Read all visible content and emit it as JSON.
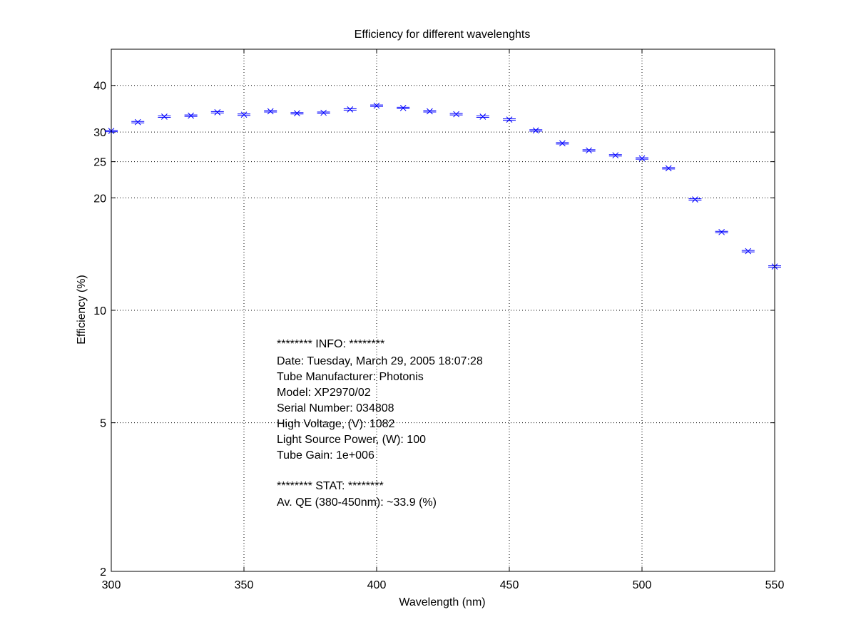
{
  "chart_data": {
    "type": "scatter",
    "title": "Efficiency for different wavelenghts",
    "xlabel": "Wavelength (nm)",
    "ylabel": "Efficiency (%)",
    "xlim": [
      300,
      550
    ],
    "ylim": [
      2,
      50
    ],
    "yscale": "log",
    "grid": true,
    "x_ticks": [
      300,
      350,
      400,
      450,
      500,
      550
    ],
    "y_ticks": [
      2,
      5,
      10,
      20,
      25,
      30,
      40
    ],
    "series": [
      {
        "color": "#0000ff",
        "marker": "x-with-errorbar",
        "x": [
          300,
          310,
          320,
          330,
          340,
          350,
          360,
          370,
          380,
          390,
          400,
          410,
          420,
          430,
          440,
          450,
          460,
          470,
          480,
          490,
          500,
          510,
          520,
          530,
          540,
          550
        ],
        "y": [
          30.2,
          31.9,
          33.0,
          33.2,
          33.9,
          33.4,
          34.1,
          33.7,
          33.8,
          34.5,
          35.3,
          34.8,
          34.1,
          33.5,
          33.0,
          32.4,
          30.3,
          28.0,
          26.8,
          26.0,
          25.5,
          24.0,
          19.8,
          16.2,
          14.4,
          13.1
        ]
      }
    ],
    "annotation_lines": [
      "******** INFO: ********",
      "Date: Tuesday, March 29, 2005 18:07:28",
      "Tube Manufacturer: Photonis",
      "Model: XP2970/02",
      "Serial Number: 034808",
      "High Voltage, (V): 1082",
      "Light Source Power, (W): 100",
      "Tube Gain: 1e+006",
      "",
      "******** STAT: ********",
      "Av. QE (380-450nm): ~33.9 (%)"
    ]
  }
}
